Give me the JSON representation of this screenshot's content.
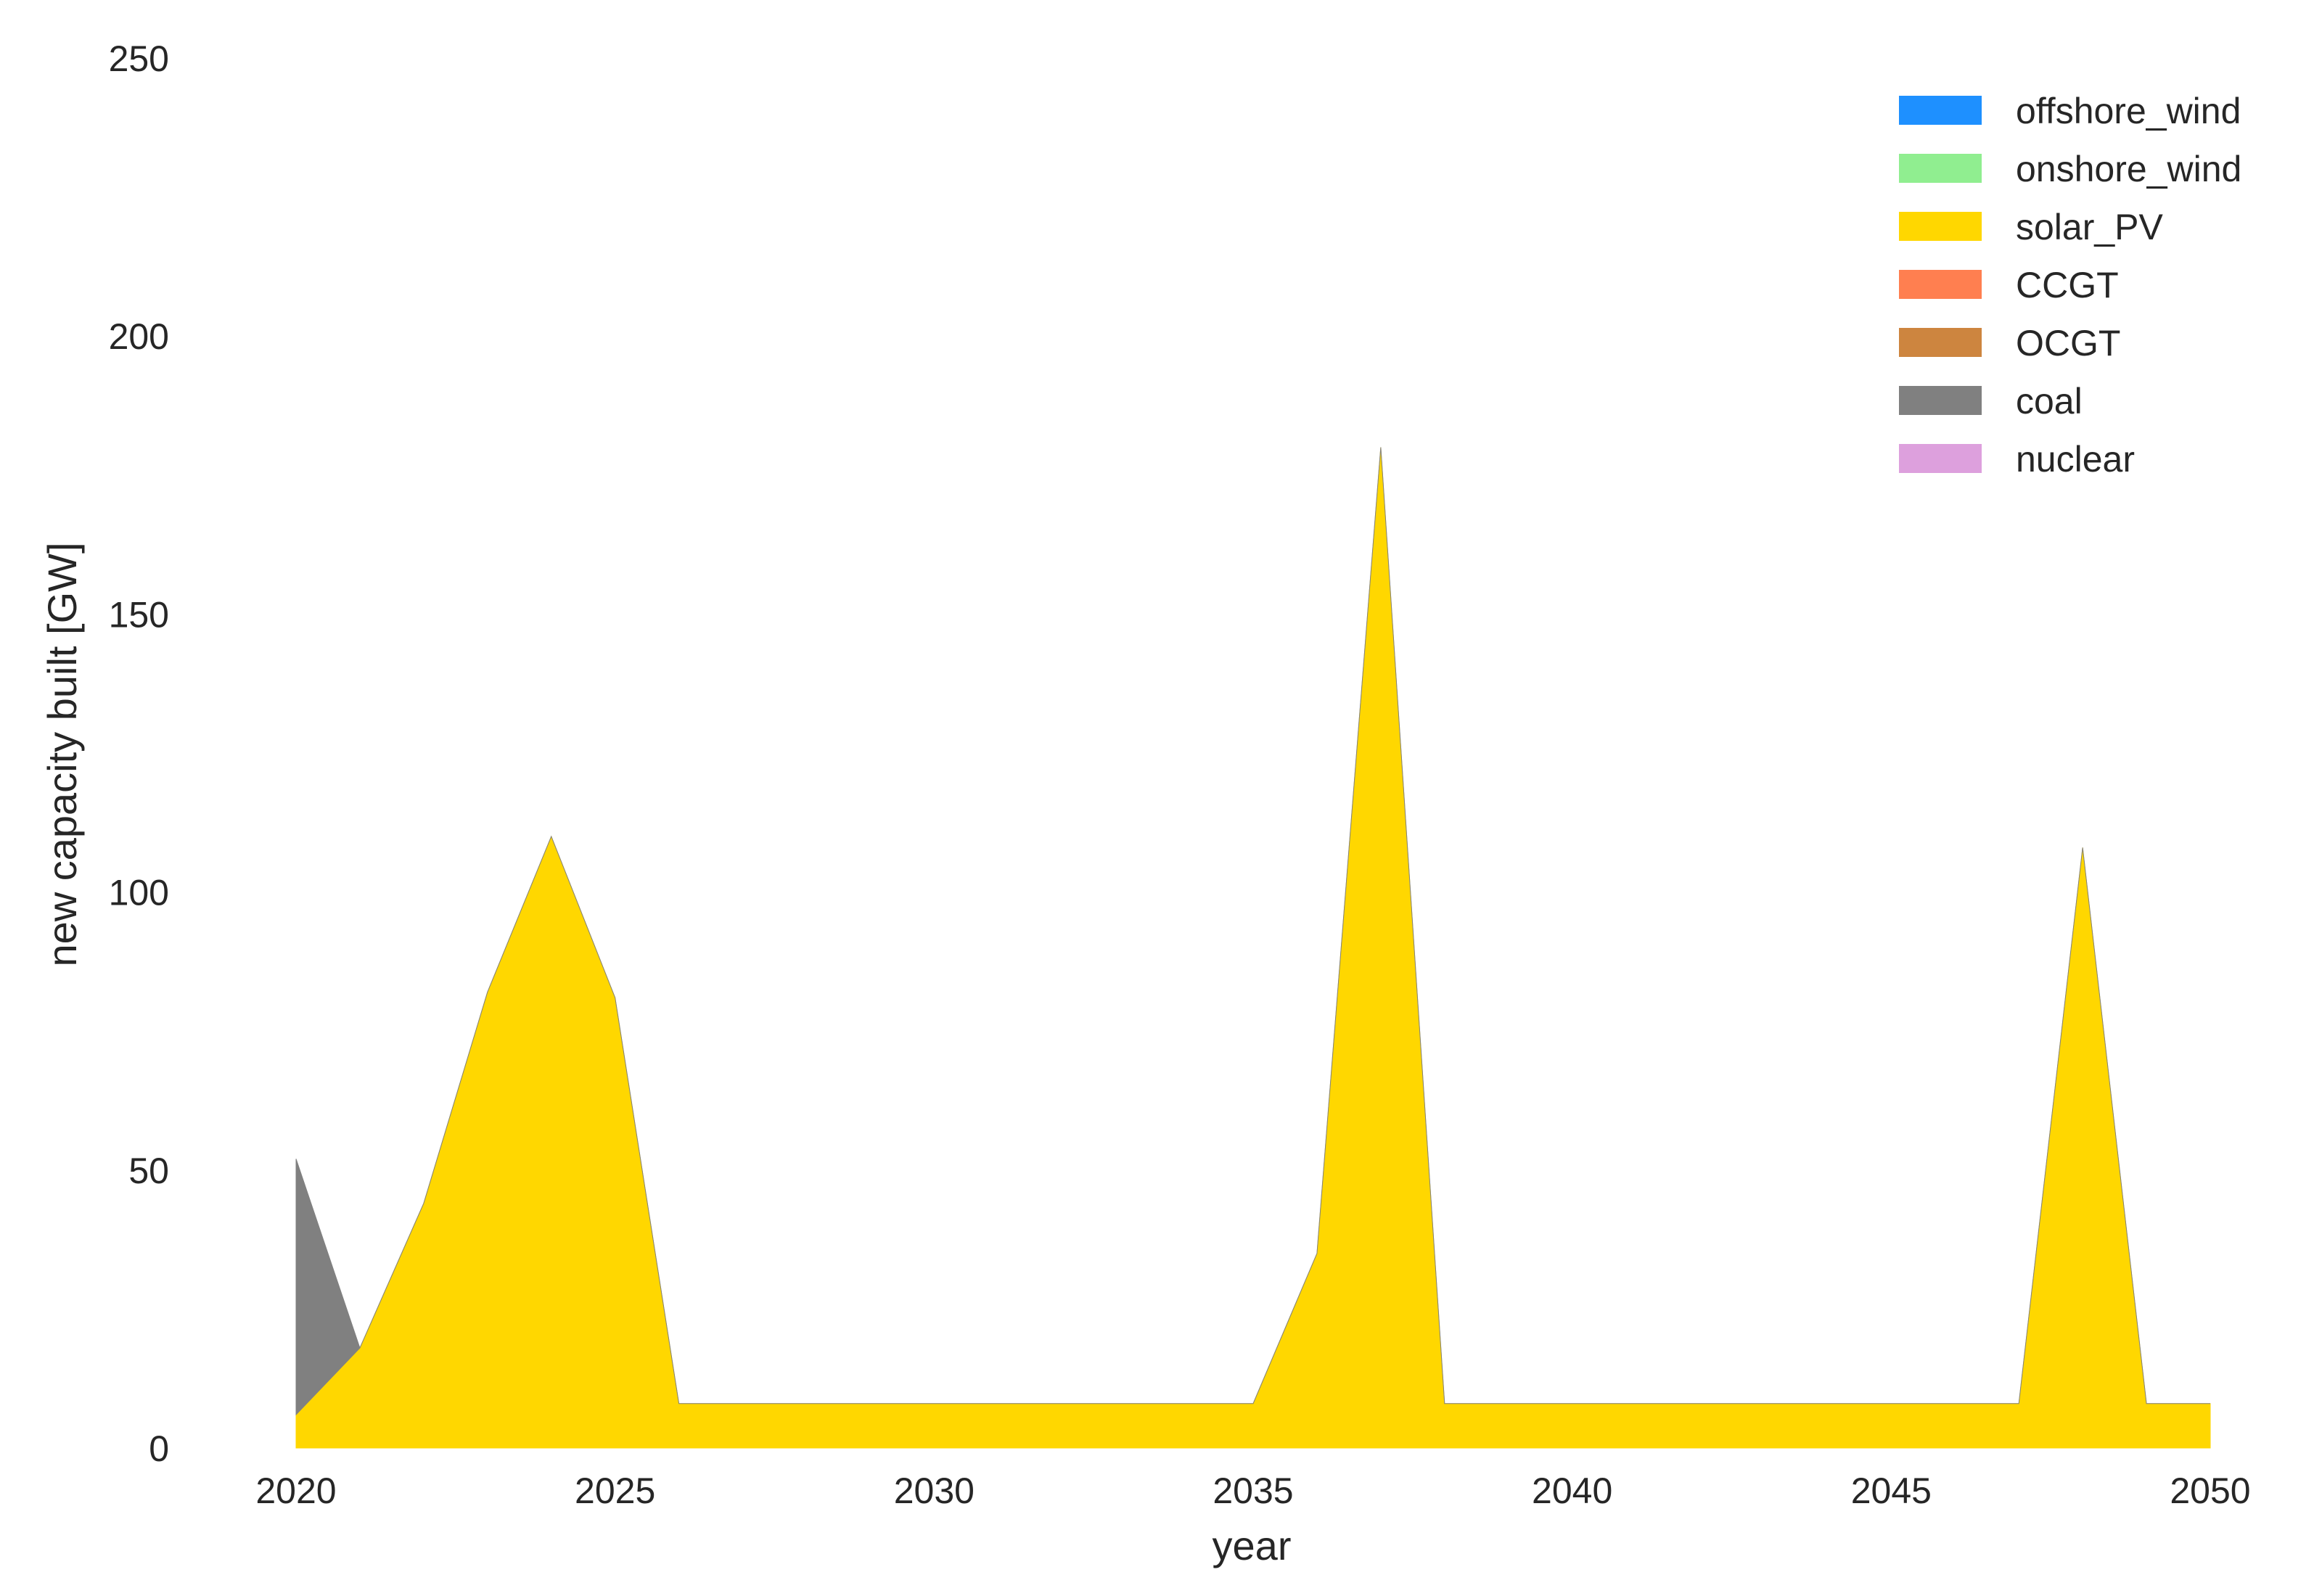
{
  "chart_data": {
    "type": "area",
    "stacked": true,
    "title": "",
    "xlabel": "year",
    "ylabel": "new capacity built [GW]",
    "xlim": [
      2020,
      2050
    ],
    "ylim": [
      0,
      250
    ],
    "xticks": [
      "2020",
      "2025",
      "2030",
      "2035",
      "2040",
      "2045",
      "2050"
    ],
    "yticks": [
      "0",
      "50",
      "100",
      "150",
      "200",
      "250"
    ],
    "grid": false,
    "legend_position": "top-right",
    "x": [
      2020,
      2021,
      2022,
      2023,
      2024,
      2025,
      2026,
      2027,
      2028,
      2029,
      2030,
      2031,
      2032,
      2033,
      2034,
      2035,
      2036,
      2037,
      2038,
      2039,
      2040,
      2041,
      2042,
      2043,
      2044,
      2045,
      2046,
      2047,
      2048,
      2049,
      2050
    ],
    "series": [
      {
        "name": "offshore_wind",
        "color": "#1E90FF",
        "values": [
          0,
          0,
          0,
          0,
          0,
          0,
          0,
          0,
          0,
          0,
          0,
          0,
          0,
          0,
          0,
          0,
          0,
          0,
          0,
          0,
          0,
          0,
          0,
          0,
          0,
          0,
          0,
          0,
          0,
          0,
          0
        ]
      },
      {
        "name": "onshore_wind",
        "color": "#90EE90",
        "values": [
          0,
          0,
          0,
          0,
          0,
          0,
          0,
          0,
          0,
          0,
          0,
          0,
          0,
          0,
          0,
          0,
          0,
          0,
          0,
          0,
          0,
          0,
          0,
          0,
          0,
          0,
          0,
          0,
          0,
          0,
          0
        ]
      },
      {
        "name": "solar_PV",
        "color": "#FFD700",
        "values": [
          6,
          18,
          44,
          82,
          110,
          81,
          8,
          8,
          8,
          8,
          8,
          8,
          8,
          8,
          8,
          8,
          35,
          180,
          8,
          8,
          8,
          8,
          8,
          8,
          8,
          8,
          8,
          8,
          108,
          8,
          8
        ]
      },
      {
        "name": "CCGT",
        "color": "#FF7F50",
        "values": [
          0,
          0,
          0,
          0,
          0,
          0,
          0,
          0,
          0,
          0,
          0,
          0,
          0,
          0,
          0,
          0,
          0,
          0,
          0,
          0,
          0,
          0,
          0,
          0,
          0,
          0,
          0,
          0,
          0,
          0,
          0
        ]
      },
      {
        "name": "OCGT",
        "color": "#CD853F",
        "values": [
          0,
          0,
          0,
          0,
          0,
          0,
          0,
          0,
          0,
          0,
          0,
          0,
          0,
          0,
          0,
          0,
          0,
          0,
          0,
          0,
          0,
          0,
          0,
          0,
          0,
          0,
          0,
          0,
          0,
          0,
          0
        ]
      },
      {
        "name": "coal",
        "color": "#808080",
        "values": [
          46,
          0,
          0,
          0,
          0,
          0,
          0,
          0,
          0,
          0,
          0,
          0,
          0,
          0,
          0,
          0,
          0,
          0,
          0,
          0,
          0,
          0,
          0,
          0,
          0,
          0,
          0,
          0,
          0,
          0,
          0
        ]
      },
      {
        "name": "nuclear",
        "color": "#DDA0DD",
        "values": [
          0,
          0,
          0,
          0,
          0,
          0,
          0,
          0,
          0,
          0,
          0,
          0,
          0,
          0,
          0,
          0,
          0,
          0,
          0,
          0,
          0,
          0,
          0,
          0,
          0,
          0,
          0,
          0,
          0,
          0,
          0
        ]
      }
    ]
  }
}
